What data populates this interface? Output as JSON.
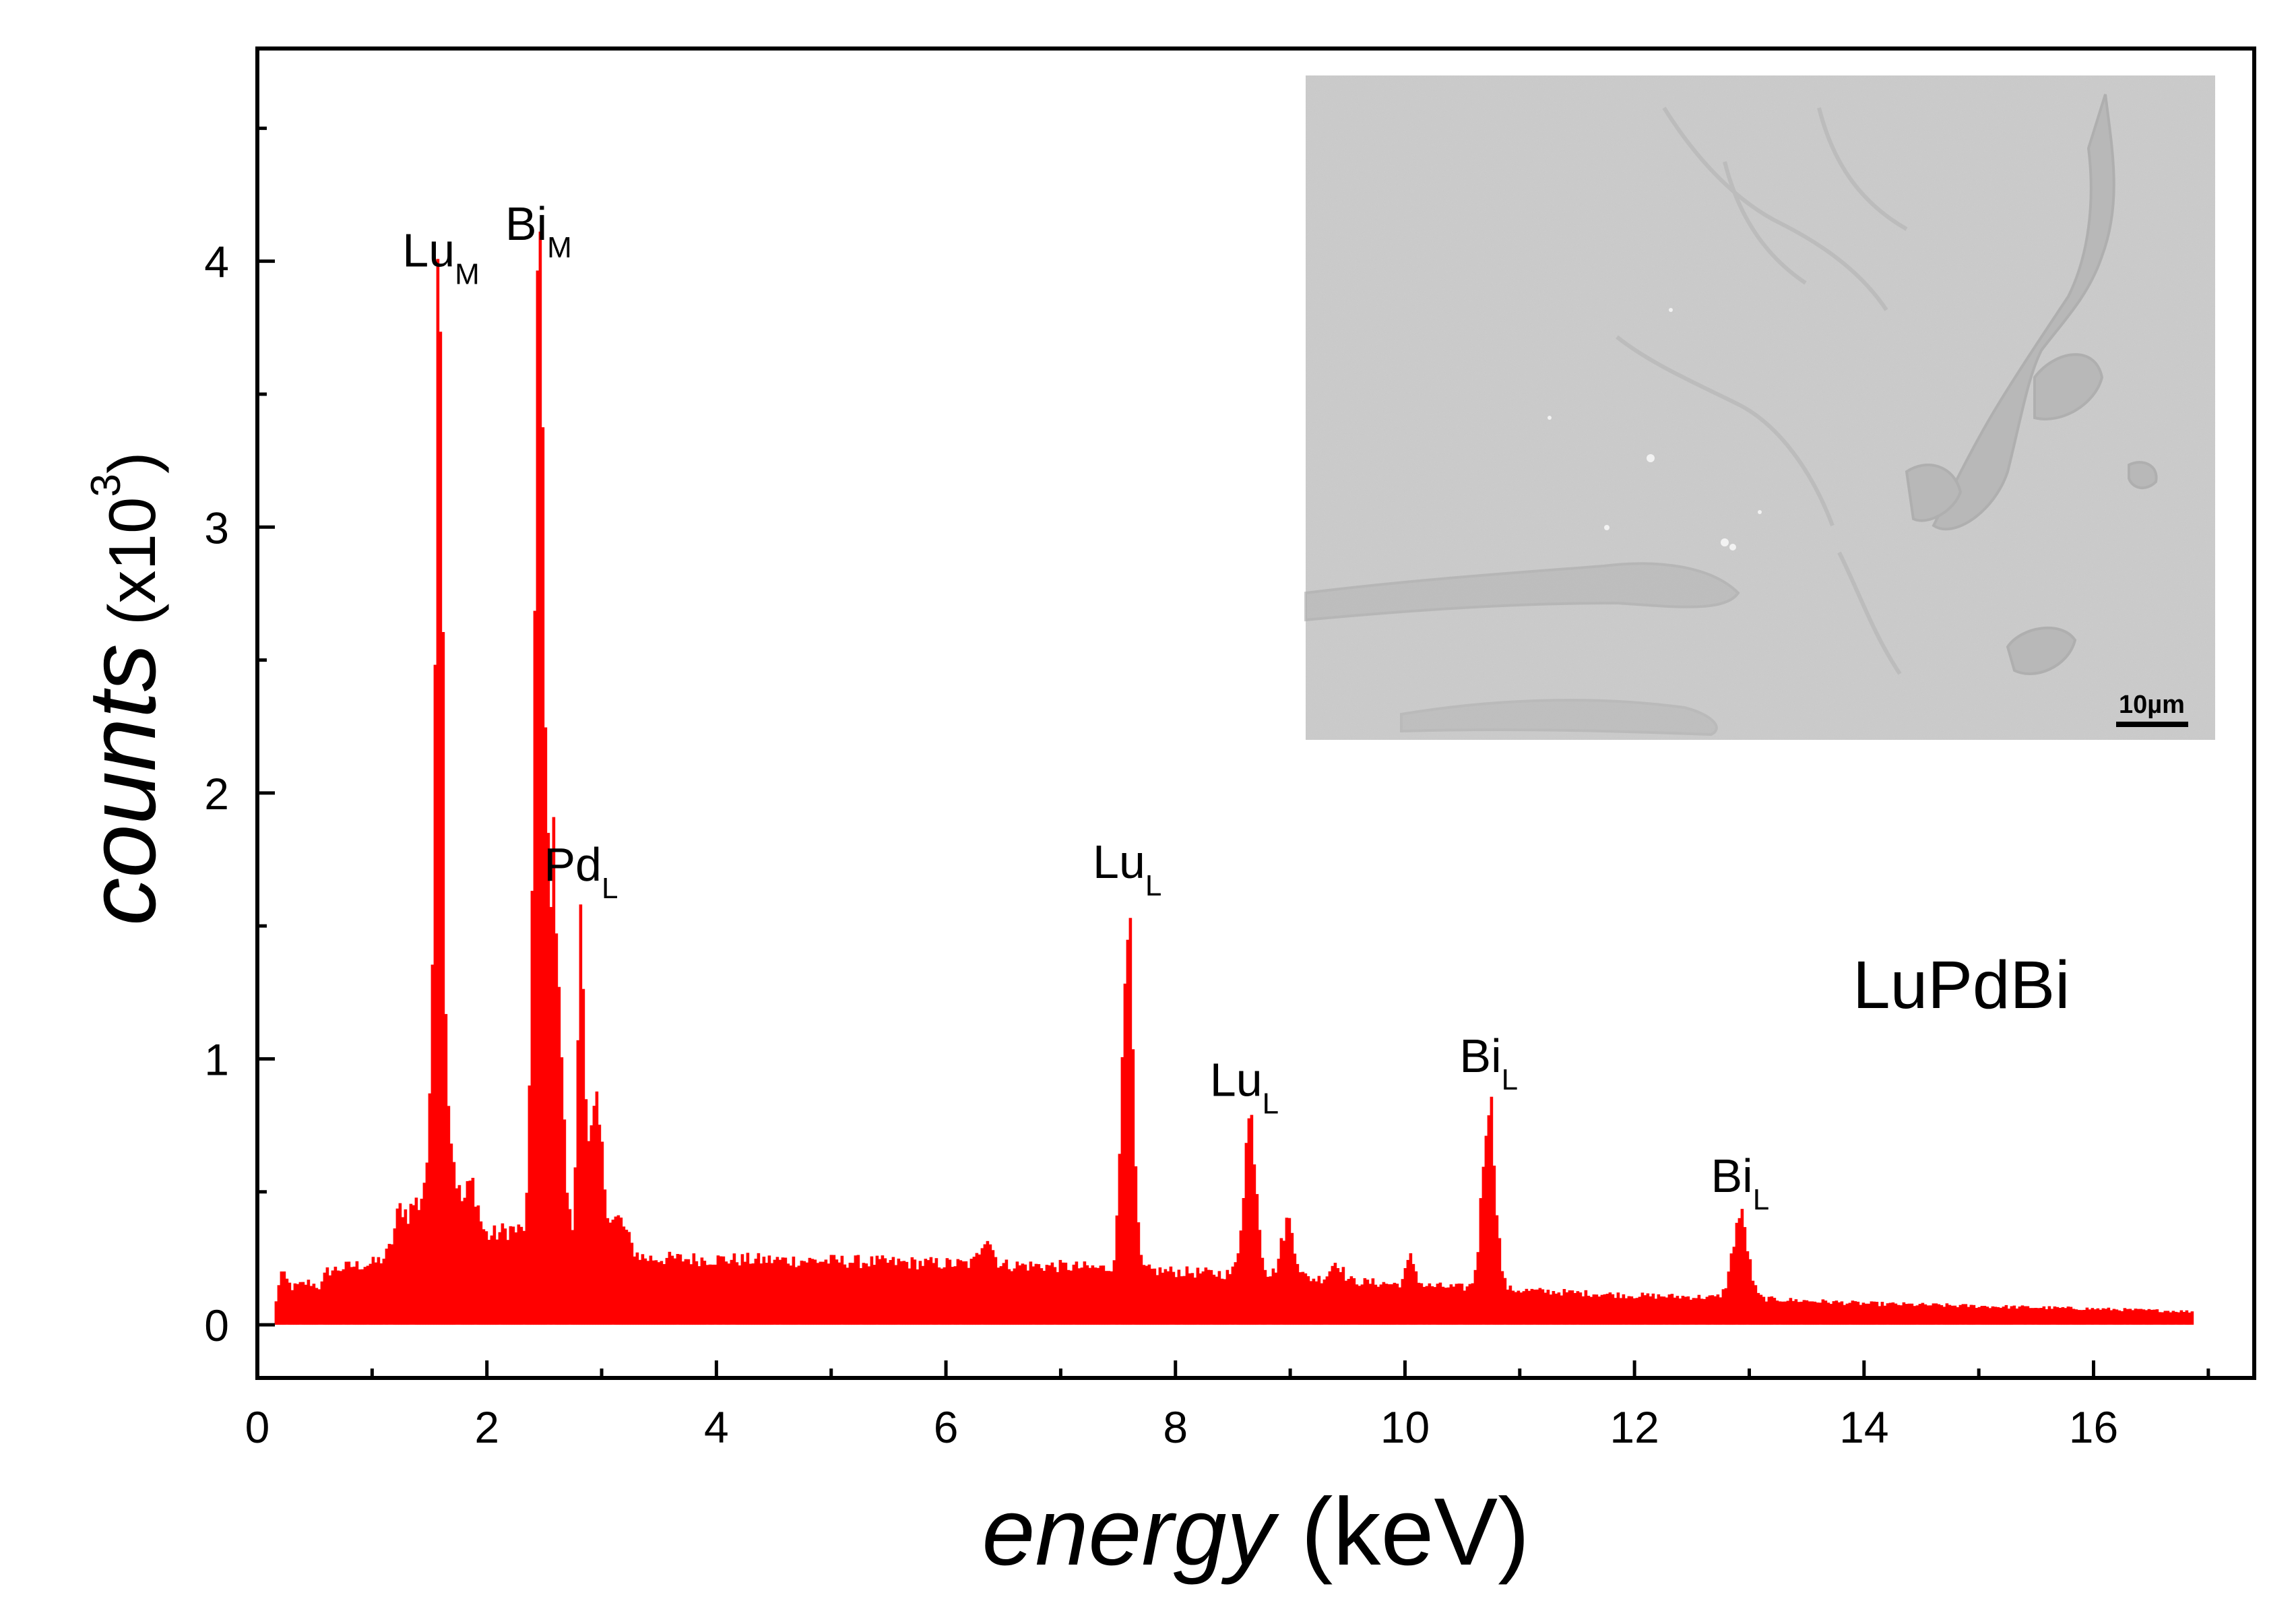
{
  "chart_data": {
    "type": "bar",
    "xlabel_italic": "energy",
    "xlabel_unit": " (keV)",
    "ylabel_italic": "counts",
    "ylabel_unit_open": " (x10",
    "ylabel_unit_exp": "3",
    "ylabel_unit_close": ")",
    "xlim": [
      0,
      17.4
    ],
    "ylim": [
      -0.2,
      4.8
    ],
    "x_ticks": [
      0,
      2,
      4,
      6,
      8,
      10,
      12,
      14,
      16
    ],
    "x_tick_labels": [
      "0",
      "2",
      "4",
      "6",
      "8",
      "10",
      "12",
      "14",
      "16"
    ],
    "x_minor_ticks": [
      1,
      3,
      5,
      7,
      9,
      11,
      13,
      15,
      17
    ],
    "y_ticks": [
      0,
      1,
      2,
      3,
      4
    ],
    "y_tick_labels": [
      "0",
      "1",
      "2",
      "3",
      "4"
    ],
    "y_minor_ticks": [
      0.5,
      1.5,
      2.5,
      3.5,
      4.5
    ],
    "grid": false,
    "color": "#ff0000",
    "series": [
      {
        "x_start": 0.15,
        "x_end": 16.85,
        "baseline": 0.0,
        "background": [
          [
            0.15,
            0.05
          ],
          [
            0.2,
            0.2
          ],
          [
            0.3,
            0.14
          ],
          [
            0.45,
            0.16
          ],
          [
            0.55,
            0.14
          ],
          [
            0.6,
            0.2
          ],
          [
            0.8,
            0.22
          ],
          [
            1.0,
            0.23
          ],
          [
            1.1,
            0.25
          ],
          [
            1.3,
            0.32
          ],
          [
            1.45,
            0.4
          ],
          [
            2.0,
            0.33
          ],
          [
            2.2,
            0.36
          ],
          [
            3.4,
            0.25
          ],
          [
            5.0,
            0.24
          ],
          [
            7.0,
            0.22
          ],
          [
            9.0,
            0.18
          ],
          [
            10.0,
            0.15
          ],
          [
            11.0,
            0.13
          ],
          [
            12.0,
            0.11
          ],
          [
            13.0,
            0.1
          ],
          [
            14.0,
            0.08
          ],
          [
            15.0,
            0.07
          ],
          [
            16.0,
            0.06
          ],
          [
            16.85,
            0.05
          ]
        ],
        "peaks": [
          {
            "x": 1.25,
            "h": 0.14,
            "w": 0.05
          },
          {
            "x": 1.36,
            "h": 0.08,
            "w": 0.03
          },
          {
            "x": 1.58,
            "h": 3.5,
            "w": 0.03
          },
          {
            "x": 1.6,
            "h": 0.55,
            "w": 0.09
          },
          {
            "x": 1.87,
            "h": 0.18,
            "w": 0.05
          },
          {
            "x": 2.45,
            "h": 3.6,
            "w": 0.04
          },
          {
            "x": 2.58,
            "h": 1.4,
            "w": 0.06
          },
          {
            "x": 2.82,
            "h": 1.28,
            "w": 0.028
          },
          {
            "x": 2.95,
            "h": 0.5,
            "w": 0.06
          },
          {
            "x": 3.15,
            "h": 0.12,
            "w": 0.07
          },
          {
            "x": 6.35,
            "h": 0.11,
            "w": 0.05
          },
          {
            "x": 7.58,
            "h": 1.38,
            "w": 0.045
          },
          {
            "x": 8.65,
            "h": 0.59,
            "w": 0.055
          },
          {
            "x": 8.98,
            "h": 0.21,
            "w": 0.055
          },
          {
            "x": 9.4,
            "h": 0.07,
            "w": 0.05
          },
          {
            "x": 10.05,
            "h": 0.1,
            "w": 0.04
          },
          {
            "x": 10.73,
            "h": 0.72,
            "w": 0.055
          },
          {
            "x": 12.92,
            "h": 0.31,
            "w": 0.065
          }
        ]
      }
    ],
    "annotations": [
      {
        "base": "Lu",
        "sub": "M",
        "x": 1.6,
        "y": 3.98
      },
      {
        "base": "Bi",
        "sub": "M",
        "x": 2.45,
        "y": 4.08
      },
      {
        "base": "Pd",
        "sub": "L",
        "x": 2.82,
        "y": 1.67
      },
      {
        "base": "Lu",
        "sub": "L",
        "x": 7.58,
        "y": 1.68
      },
      {
        "base": "Lu",
        "sub": "L",
        "x": 8.6,
        "y": 0.86
      },
      {
        "base": "Bi",
        "sub": "L",
        "x": 10.73,
        "y": 0.95
      },
      {
        "base": "Bi",
        "sub": "L",
        "x": 12.92,
        "y": 0.5
      }
    ],
    "sample_label": "LuPdBi",
    "inset": {
      "kind": "SEM micrograph",
      "scale_bar_label": "10µm",
      "colors": {
        "background": "#cdcdcd",
        "features": "#b2b2b2",
        "bright_spots": "#f2f2f2"
      }
    }
  }
}
